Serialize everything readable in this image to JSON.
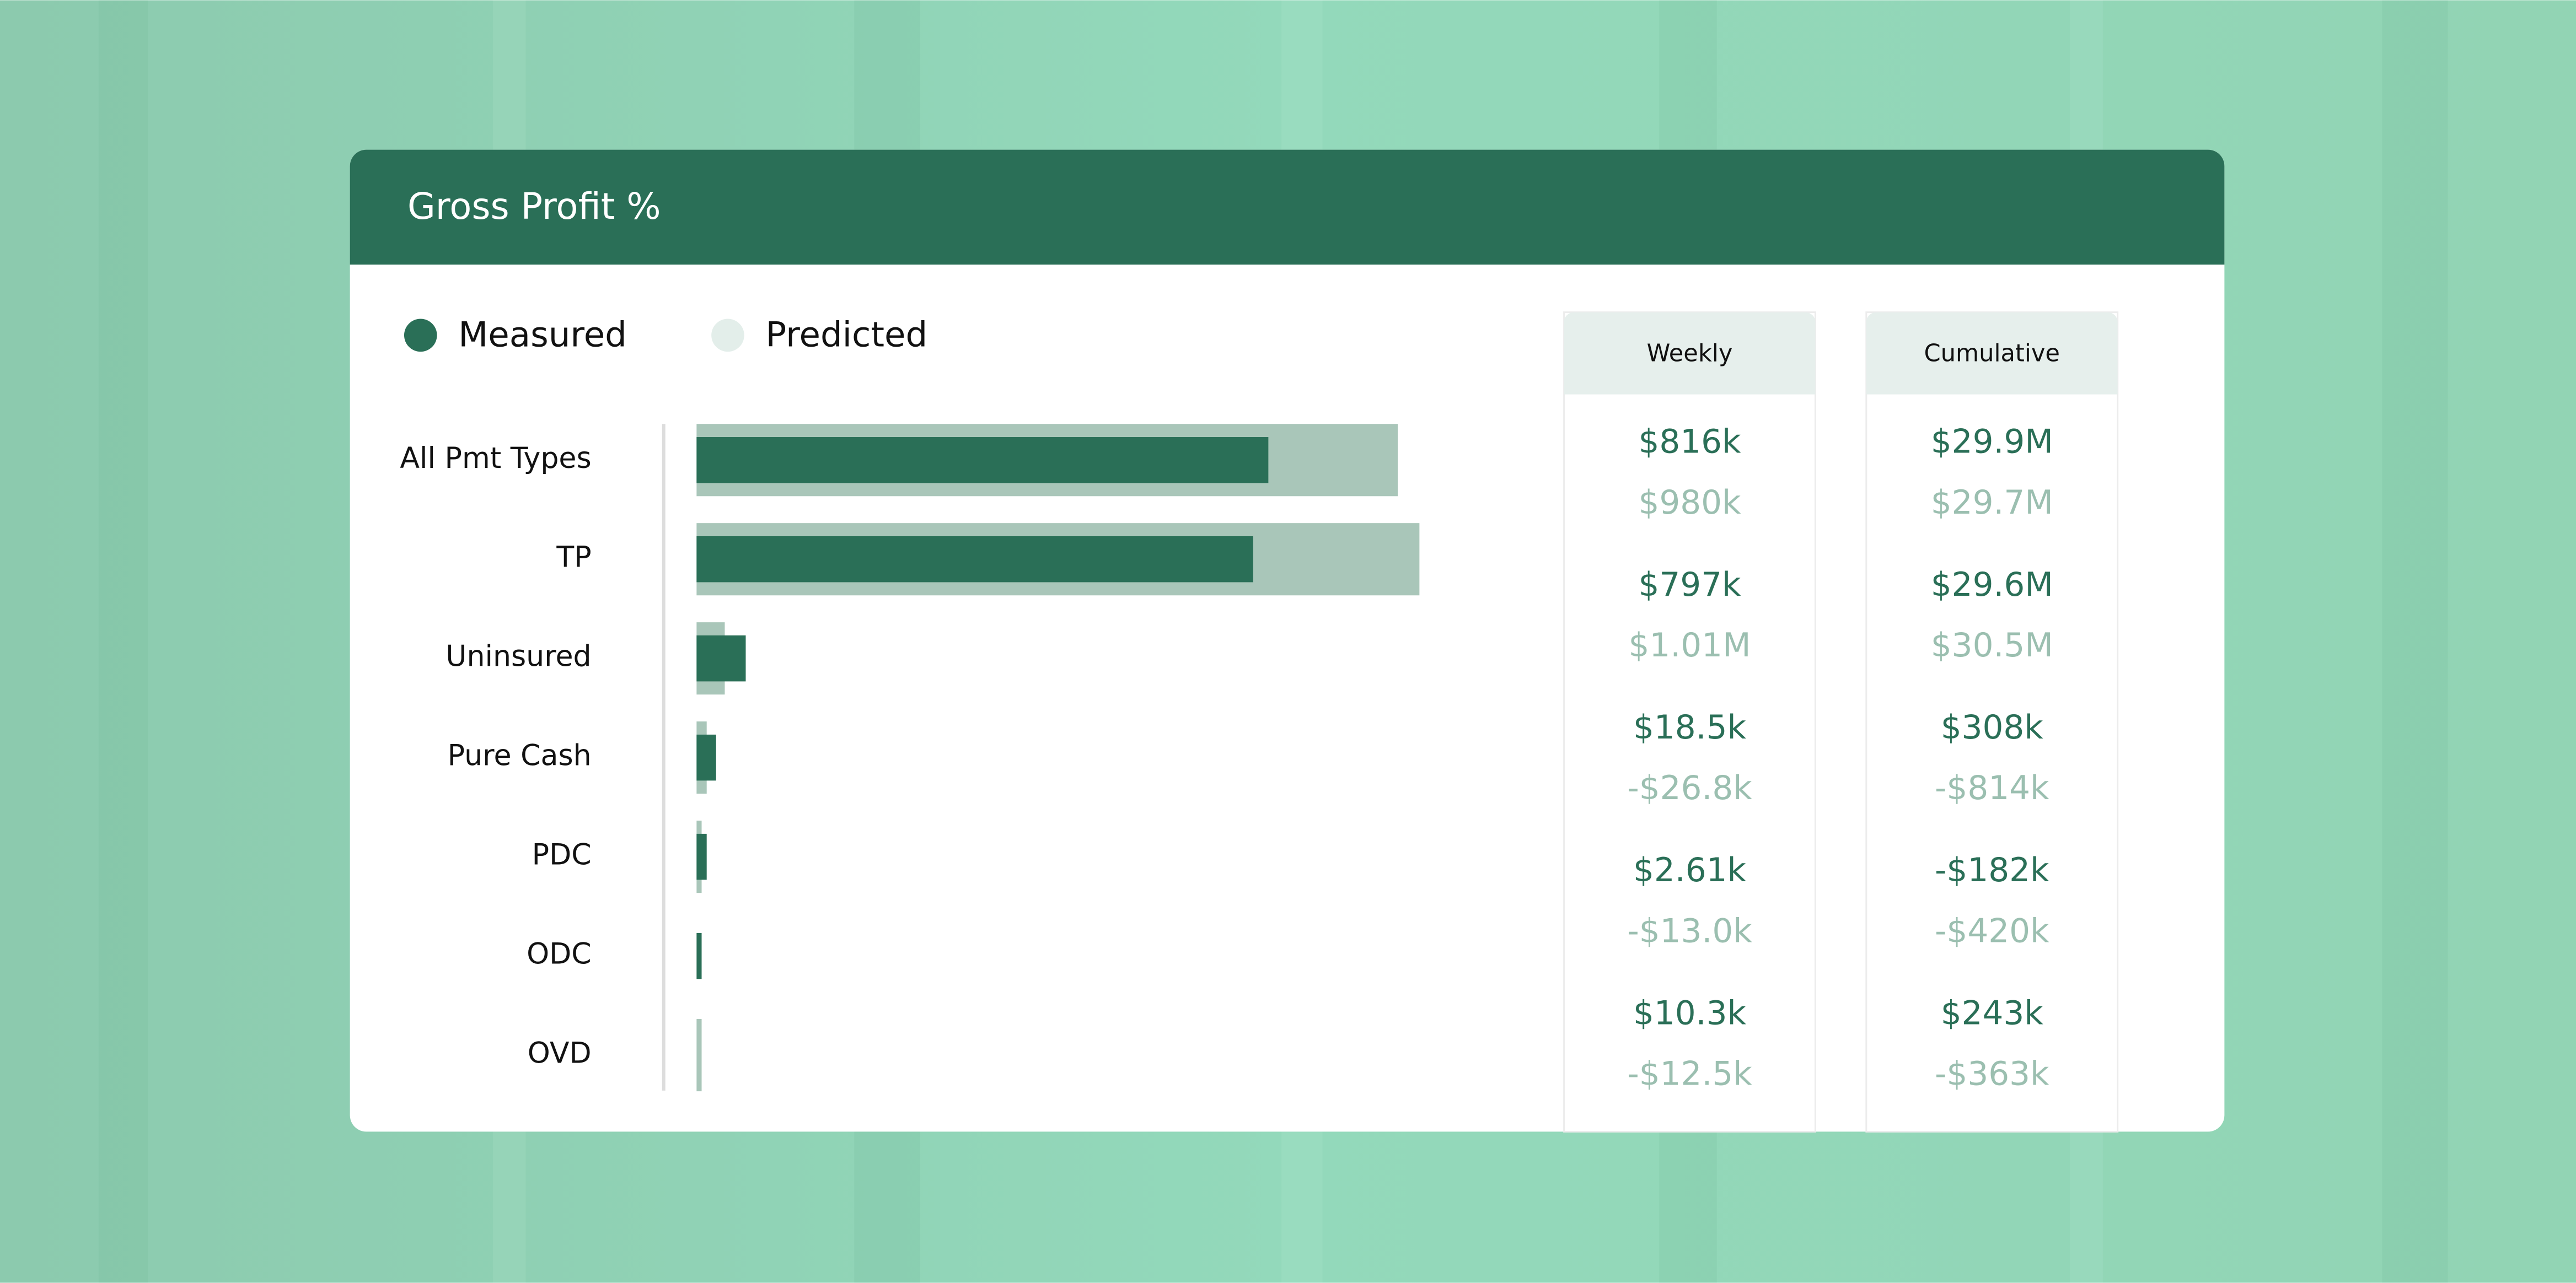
{
  "chart_data": {
    "type": "bar",
    "title": "Gross Profit %",
    "categories": [
      "All Pmt Types",
      "TP",
      "Uninsured",
      "Pure Cash",
      "PDC",
      "ODC",
      "OVD"
    ],
    "series": [
      {
        "name": "Measured",
        "color": "#2a6f57",
        "values": [
          79.1,
          77,
          6.8,
          2.7,
          1.4,
          0.7,
          0
        ]
      },
      {
        "name": "Predicted",
        "color": "#a9c6b9",
        "values": [
          97,
          100,
          3.9,
          1.4,
          0.7,
          0,
          0.7
        ]
      }
    ]
  },
  "table": {
    "columns": [
      "Weekly",
      "Cumulative"
    ],
    "rows": [
      [
        [
          "$816k",
          "$980k"
        ],
        [
          "$29.9M",
          "$29.7M"
        ]
      ],
      [
        [
          "$797k",
          "$1.01M"
        ],
        [
          "$29.6M",
          "$30.5M"
        ]
      ],
      [
        [
          "$18.5k",
          "-$26.8k"
        ],
        [
          "$308k",
          "-$814k"
        ]
      ],
      [
        [
          "$2.61k",
          "-$13.0k"
        ],
        [
          "-$182k",
          "-$420k"
        ]
      ],
      [
        [
          "$10.3k",
          "-$12.5k"
        ],
        [
          "$243k",
          "-$363k"
        ]
      ]
    ]
  }
}
